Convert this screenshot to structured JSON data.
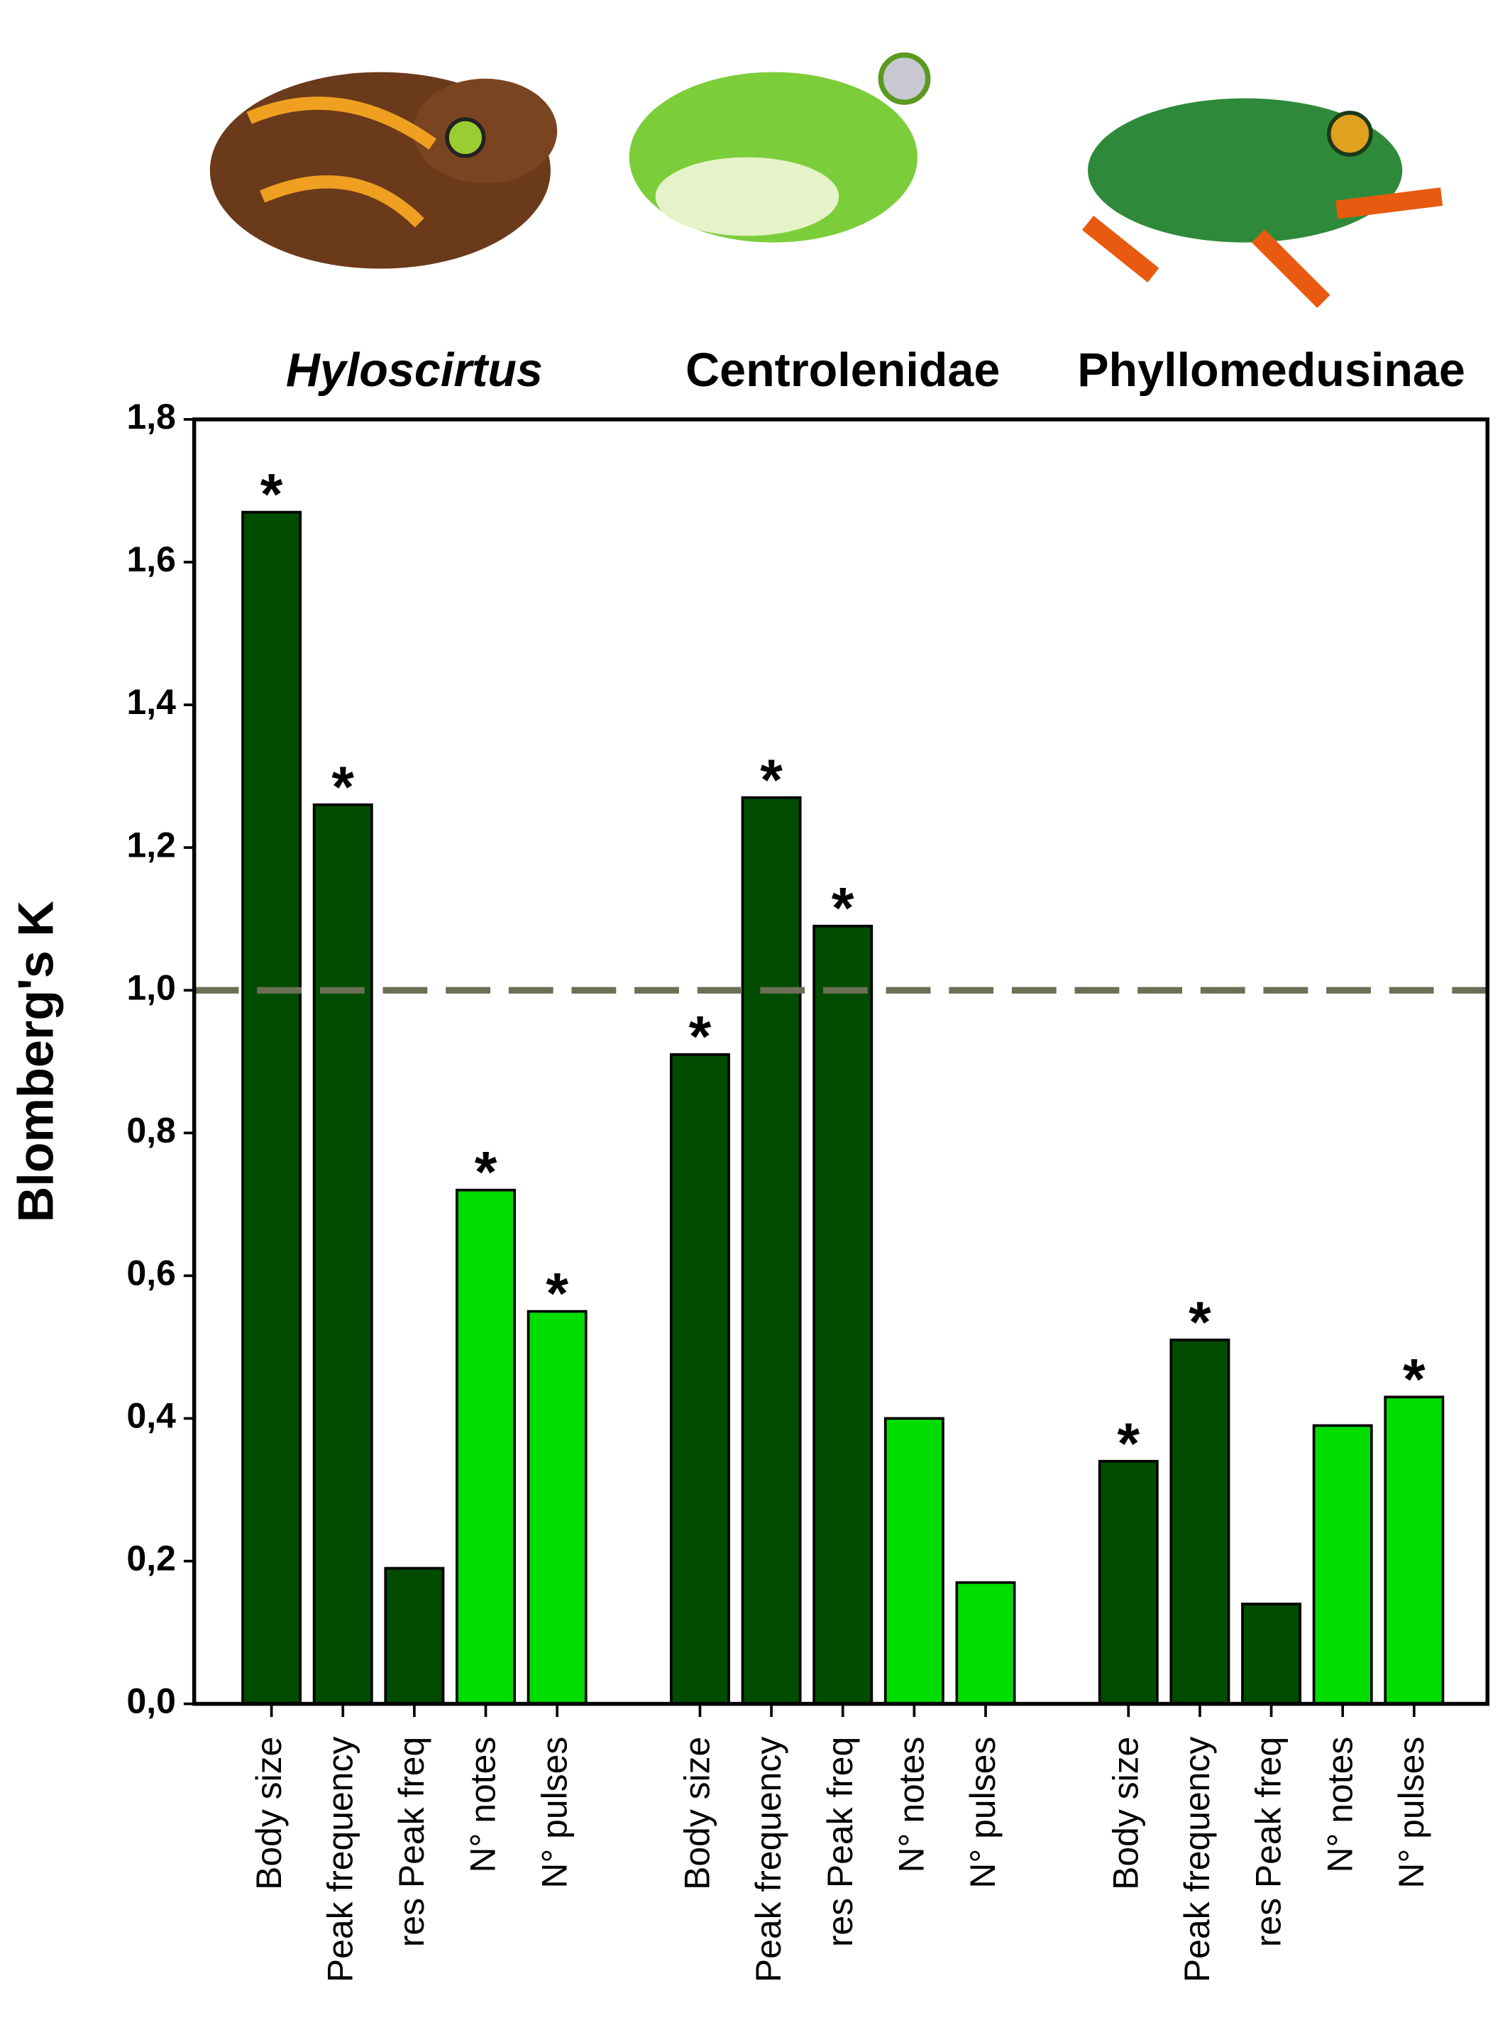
{
  "chart_data": {
    "type": "bar",
    "y_label": "Blomberg's K",
    "groups": [
      "Hyloscirtus",
      "Centrolenidae",
      "Phyllomedusinae"
    ],
    "categories": [
      "Body size",
      "Peak frequency",
      "res Peak freq",
      "N° notes",
      "N° pulses",
      "Body size",
      "Peak frequency",
      "res Peak freq",
      "N° notes",
      "N° pulses",
      "Body size",
      "Peak frequency",
      "res Peak freq",
      "N° notes",
      "N° pulses"
    ],
    "values": [
      1.67,
      1.26,
      0.19,
      0.72,
      0.55,
      0.91,
      1.27,
      1.09,
      0.4,
      0.17,
      0.34,
      0.51,
      0.14,
      0.39,
      0.43
    ],
    "colors": [
      "#004c00",
      "#004c00",
      "#004c00",
      "#00dd00",
      "#00dd00",
      "#004c00",
      "#004c00",
      "#004c00",
      "#00dd00",
      "#00dd00",
      "#004c00",
      "#004c00",
      "#004c00",
      "#00dd00",
      "#00dd00"
    ],
    "significance": [
      "*",
      "*",
      null,
      "*",
      "*",
      "*",
      "*",
      "*",
      null,
      null,
      "*",
      "*",
      null,
      null,
      "*"
    ],
    "reference_line": 1,
    "reference_color": "#6b7055",
    "ylim": [
      0,
      1.8
    ],
    "yticks": [
      {
        "value": 0,
        "label": "0,0"
      },
      {
        "value": 0.2,
        "label": "0,2"
      },
      {
        "value": 0.4,
        "label": "0,4"
      },
      {
        "value": 0.6,
        "label": "0,6"
      },
      {
        "value": 0.8,
        "label": "0,8"
      },
      {
        "value": 1,
        "label": "1,0"
      },
      {
        "value": 1.2,
        "label": "1,2"
      },
      {
        "value": 1.4,
        "label": "1,4"
      },
      {
        "value": 1.6,
        "label": "1,6"
      },
      {
        "value": 1.8,
        "label": "1,8"
      }
    ]
  }
}
